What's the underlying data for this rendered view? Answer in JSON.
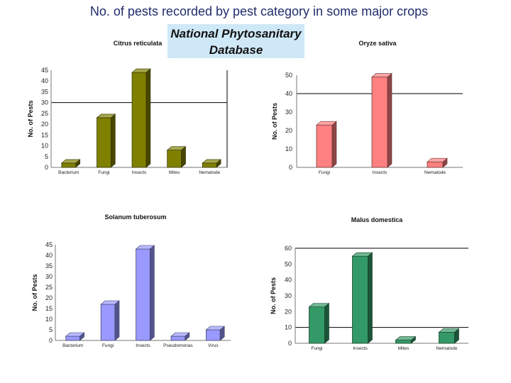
{
  "slide": {
    "title": "No. of pests recorded by pest category in some major crops",
    "source_box": "National Phytosanitary Database"
  },
  "colors": {
    "citrus": "#808000",
    "rice": "#ff8080",
    "potato": "#9999ff",
    "apple": "#339966",
    "grid": "#000000"
  },
  "chart_data": [
    {
      "type": "bar",
      "title": "Citrus reticulata",
      "ylabel": "No. of Pests",
      "xlabel": "",
      "categories": [
        "Bacterium",
        "Fungi",
        "Insects",
        "Mites",
        "Nematode"
      ],
      "values": [
        2,
        23,
        44,
        8,
        2
      ],
      "ylim": [
        0,
        45
      ],
      "yticks": [
        0,
        5,
        10,
        15,
        20,
        25,
        30,
        35,
        40,
        45
      ],
      "gridlines": [
        30
      ],
      "color": "#808000"
    },
    {
      "type": "bar",
      "title": "Oryze sativa",
      "ylabel": "No. of Pests",
      "xlabel": "",
      "categories": [
        "Fungi",
        "Insects",
        "Nematode"
      ],
      "values": [
        23,
        49,
        3
      ],
      "ylim": [
        0,
        50
      ],
      "yticks": [
        0,
        10,
        20,
        30,
        40,
        50
      ],
      "gridlines": [
        40
      ],
      "color": "#ff8080"
    },
    {
      "type": "bar",
      "title": "Solanum tuberosum",
      "ylabel": "No. of Pests",
      "xlabel": "",
      "categories": [
        "Bacterium",
        "Fungi",
        "Insects",
        "Pseudomonas",
        "Virus"
      ],
      "values": [
        2,
        17,
        43,
        2,
        5
      ],
      "ylim": [
        0,
        45
      ],
      "yticks": [
        0,
        5,
        10,
        15,
        20,
        25,
        30,
        35,
        40,
        45
      ],
      "gridlines": [],
      "color": "#9999ff"
    },
    {
      "type": "bar",
      "title": "Malus domestica",
      "ylabel": "No. of Pests",
      "xlabel": "",
      "categories": [
        "Fungi",
        "Insects",
        "Mites",
        "Nematode"
      ],
      "values": [
        23,
        55,
        2,
        7
      ],
      "ylim": [
        0,
        60
      ],
      "yticks": [
        0,
        10,
        20,
        30,
        40,
        50,
        60
      ],
      "gridlines": [
        10,
        60
      ],
      "color": "#339966"
    }
  ]
}
